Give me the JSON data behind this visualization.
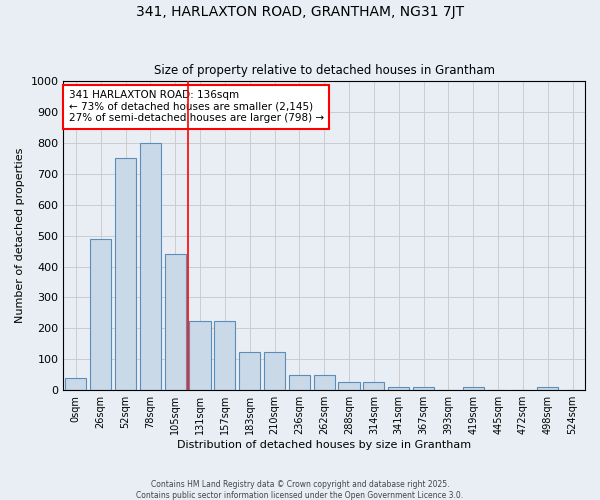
{
  "title": "341, HARLAXTON ROAD, GRANTHAM, NG31 7JT",
  "subtitle": "Size of property relative to detached houses in Grantham",
  "xlabel": "Distribution of detached houses by size in Grantham",
  "ylabel": "Number of detached properties",
  "bar_values": [
    40,
    490,
    750,
    800,
    440,
    225,
    225,
    125,
    125,
    50,
    50,
    25,
    25,
    10,
    10,
    0,
    10,
    0,
    0,
    10,
    0
  ],
  "bin_labels": [
    "0sqm",
    "26sqm",
    "52sqm",
    "78sqm",
    "105sqm",
    "131sqm",
    "157sqm",
    "183sqm",
    "210sqm",
    "236sqm",
    "262sqm",
    "288sqm",
    "314sqm",
    "341sqm",
    "367sqm",
    "393sqm",
    "419sqm",
    "445sqm",
    "472sqm",
    "498sqm",
    "524sqm"
  ],
  "bar_color": "#c9d9e8",
  "bar_edge_color": "#5b8db8",
  "grid_color": "#cccccc",
  "vline_x_index": 5,
  "vline_color": "red",
  "annotation_text": "341 HARLAXTON ROAD: 136sqm\n← 73% of detached houses are smaller (2,145)\n27% of semi-detached houses are larger (798) →",
  "annotation_box_color": "white",
  "annotation_box_edge": "red",
  "ylim": [
    0,
    1000
  ],
  "yticks": [
    0,
    100,
    200,
    300,
    400,
    500,
    600,
    700,
    800,
    900,
    1000
  ],
  "footer1": "Contains HM Land Registry data © Crown copyright and database right 2025.",
  "footer2": "Contains public sector information licensed under the Open Government Licence 3.0.",
  "bg_color": "#e8eef4"
}
